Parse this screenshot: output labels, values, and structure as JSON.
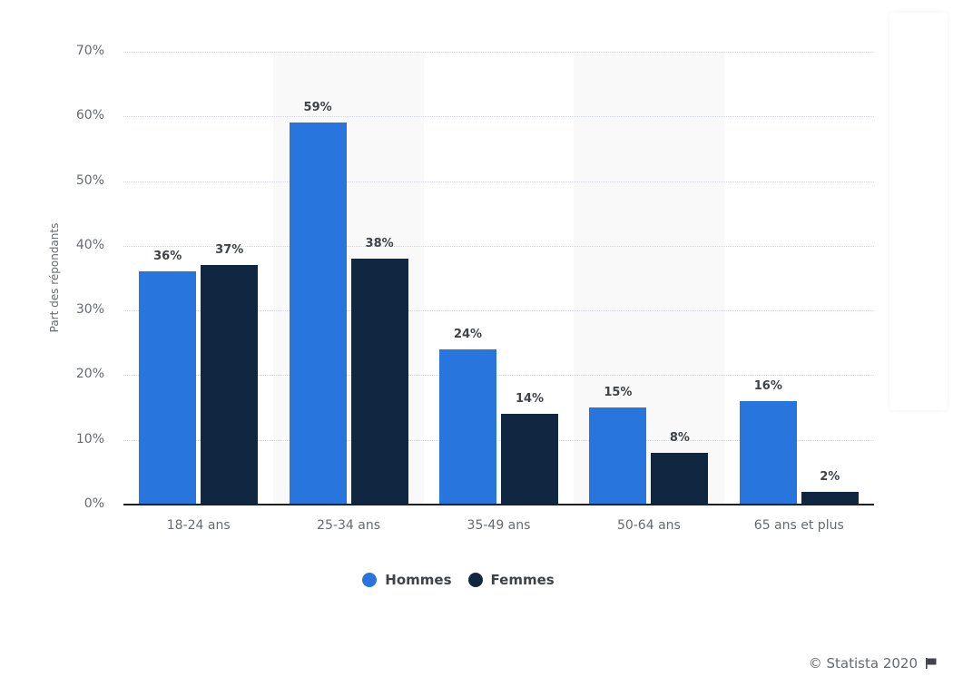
{
  "chart_data": {
    "type": "bar",
    "title": "",
    "xlabel": "",
    "ylabel": "Part des répondants",
    "ylim": [
      0,
      70
    ],
    "y_ticks": [
      "0%",
      "10%",
      "20%",
      "30%",
      "40%",
      "50%",
      "60%",
      "70%"
    ],
    "categories": [
      "18-24 ans",
      "25-34 ans",
      "35-49 ans",
      "50-64 ans",
      "65 ans et plus"
    ],
    "series": [
      {
        "name": "Hommes",
        "color": "#2876dd",
        "values": [
          36,
          59,
          24,
          15,
          16
        ],
        "labels": [
          "36%",
          "59%",
          "24%",
          "15%",
          "16%"
        ]
      },
      {
        "name": "Femmes",
        "color": "#0f2740",
        "values": [
          37,
          38,
          14,
          8,
          2
        ],
        "labels": [
          "37%",
          "38%",
          "14%",
          "8%",
          "2%"
        ]
      }
    ],
    "grid": true,
    "legend_position": "bottom"
  },
  "legend": {
    "items": [
      {
        "label": "Hommes",
        "color": "#2876dd"
      },
      {
        "label": "Femmes",
        "color": "#0f2740"
      }
    ]
  },
  "footer": {
    "credit": "© Statista 2020",
    "flag_icon": "flag-icon"
  }
}
